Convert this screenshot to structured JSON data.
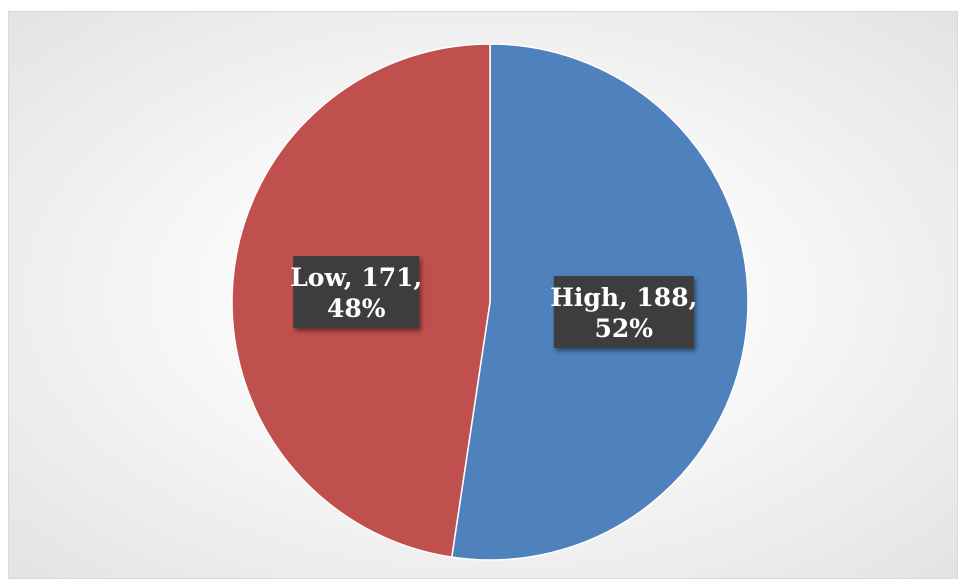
{
  "chart_data": {
    "type": "pie",
    "categories": [
      "High",
      "Low"
    ],
    "values": [
      188,
      171
    ],
    "percentages": [
      "52%",
      "48%"
    ],
    "colors": [
      "#4f81bd",
      "#c0504d"
    ],
    "label_box_color": "#3a3a3a",
    "labels": [
      {
        "line1": "High, 188,",
        "line2": "52%"
      },
      {
        "line1": "Low, 171,",
        "line2": "48%"
      }
    ],
    "legend": "none",
    "start_angle": "12 o'clock, clockwise"
  }
}
